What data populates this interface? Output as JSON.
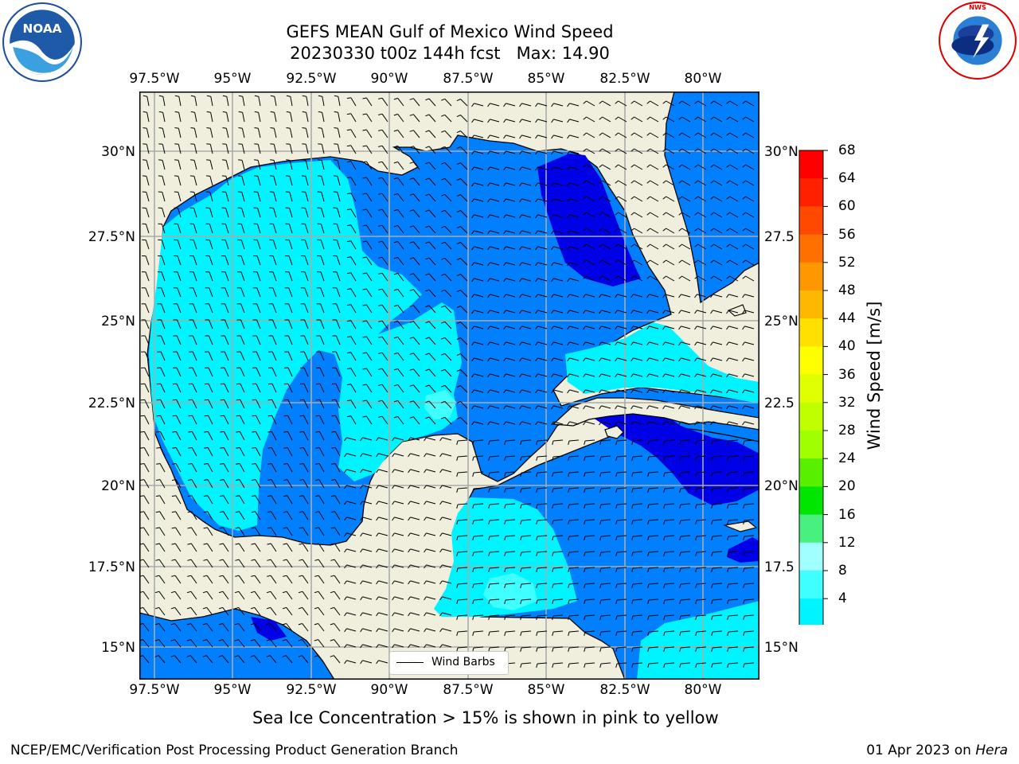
{
  "title_line1": "GEFS MEAN Gulf of Mexico Wind Speed",
  "title_line2": "20230330 t00z 144h fcst   Max: 14.90",
  "lon_labels": [
    "97.5°W",
    "95°W",
    "92.5°W",
    "90°W",
    "87.5°W",
    "85°W",
    "82.5°W",
    "80°W"
  ],
  "lat_labels_left": [
    "30°N",
    "27.5°N",
    "25°N",
    "22.5°N",
    "20°N",
    "17.5°N",
    "15°N"
  ],
  "lat_labels_right": [
    "30°N",
    "27.5",
    "25°N",
    "22.5",
    "20°N",
    "17.5",
    "15°N"
  ],
  "colorbar": {
    "title": "Wind Speed [m/s]",
    "ticks": [
      "68",
      "64",
      "60",
      "56",
      "52",
      "48",
      "44",
      "40",
      "36",
      "32",
      "28",
      "24",
      "20",
      "16",
      "12",
      "8",
      "4"
    ],
    "colors": [
      "#ff0000",
      "#ff2000",
      "#ff4800",
      "#ff7000",
      "#ff9800",
      "#ffb800",
      "#ffe000",
      "#ffff00",
      "#e0ff00",
      "#c0ff00",
      "#a0ff00",
      "#58f000",
      "#00e600",
      "#48f080",
      "#a0ffff",
      "#40ffff",
      "#00f4ff",
      "#0080ff"
    ],
    "arrow_color": "#0000e6"
  },
  "legend_label": "Wind Barbs",
  "sea_ice_note": "Sea Ice Concentration > 15% is shown in pink to yellow",
  "credit": "NCEP/EMC/Verification Post Processing Product Generation Branch",
  "date_text": "01 Apr 2023 on ",
  "machine": "Hera",
  "logos": {
    "left": "NOAA",
    "right": "NATIONAL WEATHER SERVICE"
  },
  "map_colors": {
    "land": "#f0eedc",
    "speed_4_8": "#0080ff",
    "speed_8_12": "#00f4ff",
    "speed_12_16": "#40ffff",
    "speed_0_4": "#0000e6"
  }
}
